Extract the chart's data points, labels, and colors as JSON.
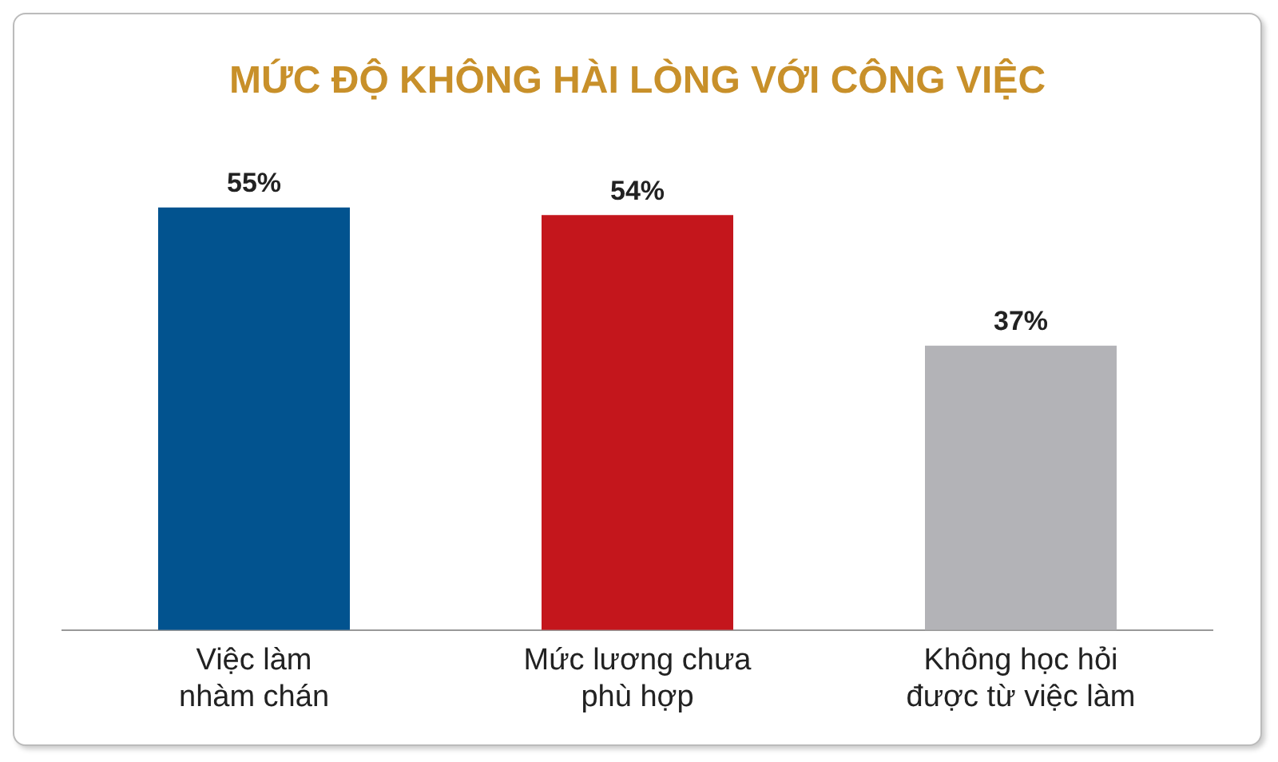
{
  "chart_data": {
    "type": "bar",
    "title": "MỨC ĐỘ KHÔNG HÀI LÒNG VỚI CÔNG VIỆC",
    "categories": [
      "Việc làm\nnhàm chán",
      "Mức lương chưa\nphù hợp",
      "Không học hỏi\nđược từ việc làm"
    ],
    "values": [
      55,
      54,
      37
    ],
    "colors": [
      "#02538f",
      "#c4161c",
      "#b3b3b7"
    ],
    "value_labels": [
      "55%",
      "54%",
      "37%"
    ],
    "grid": false,
    "legend": false
  }
}
